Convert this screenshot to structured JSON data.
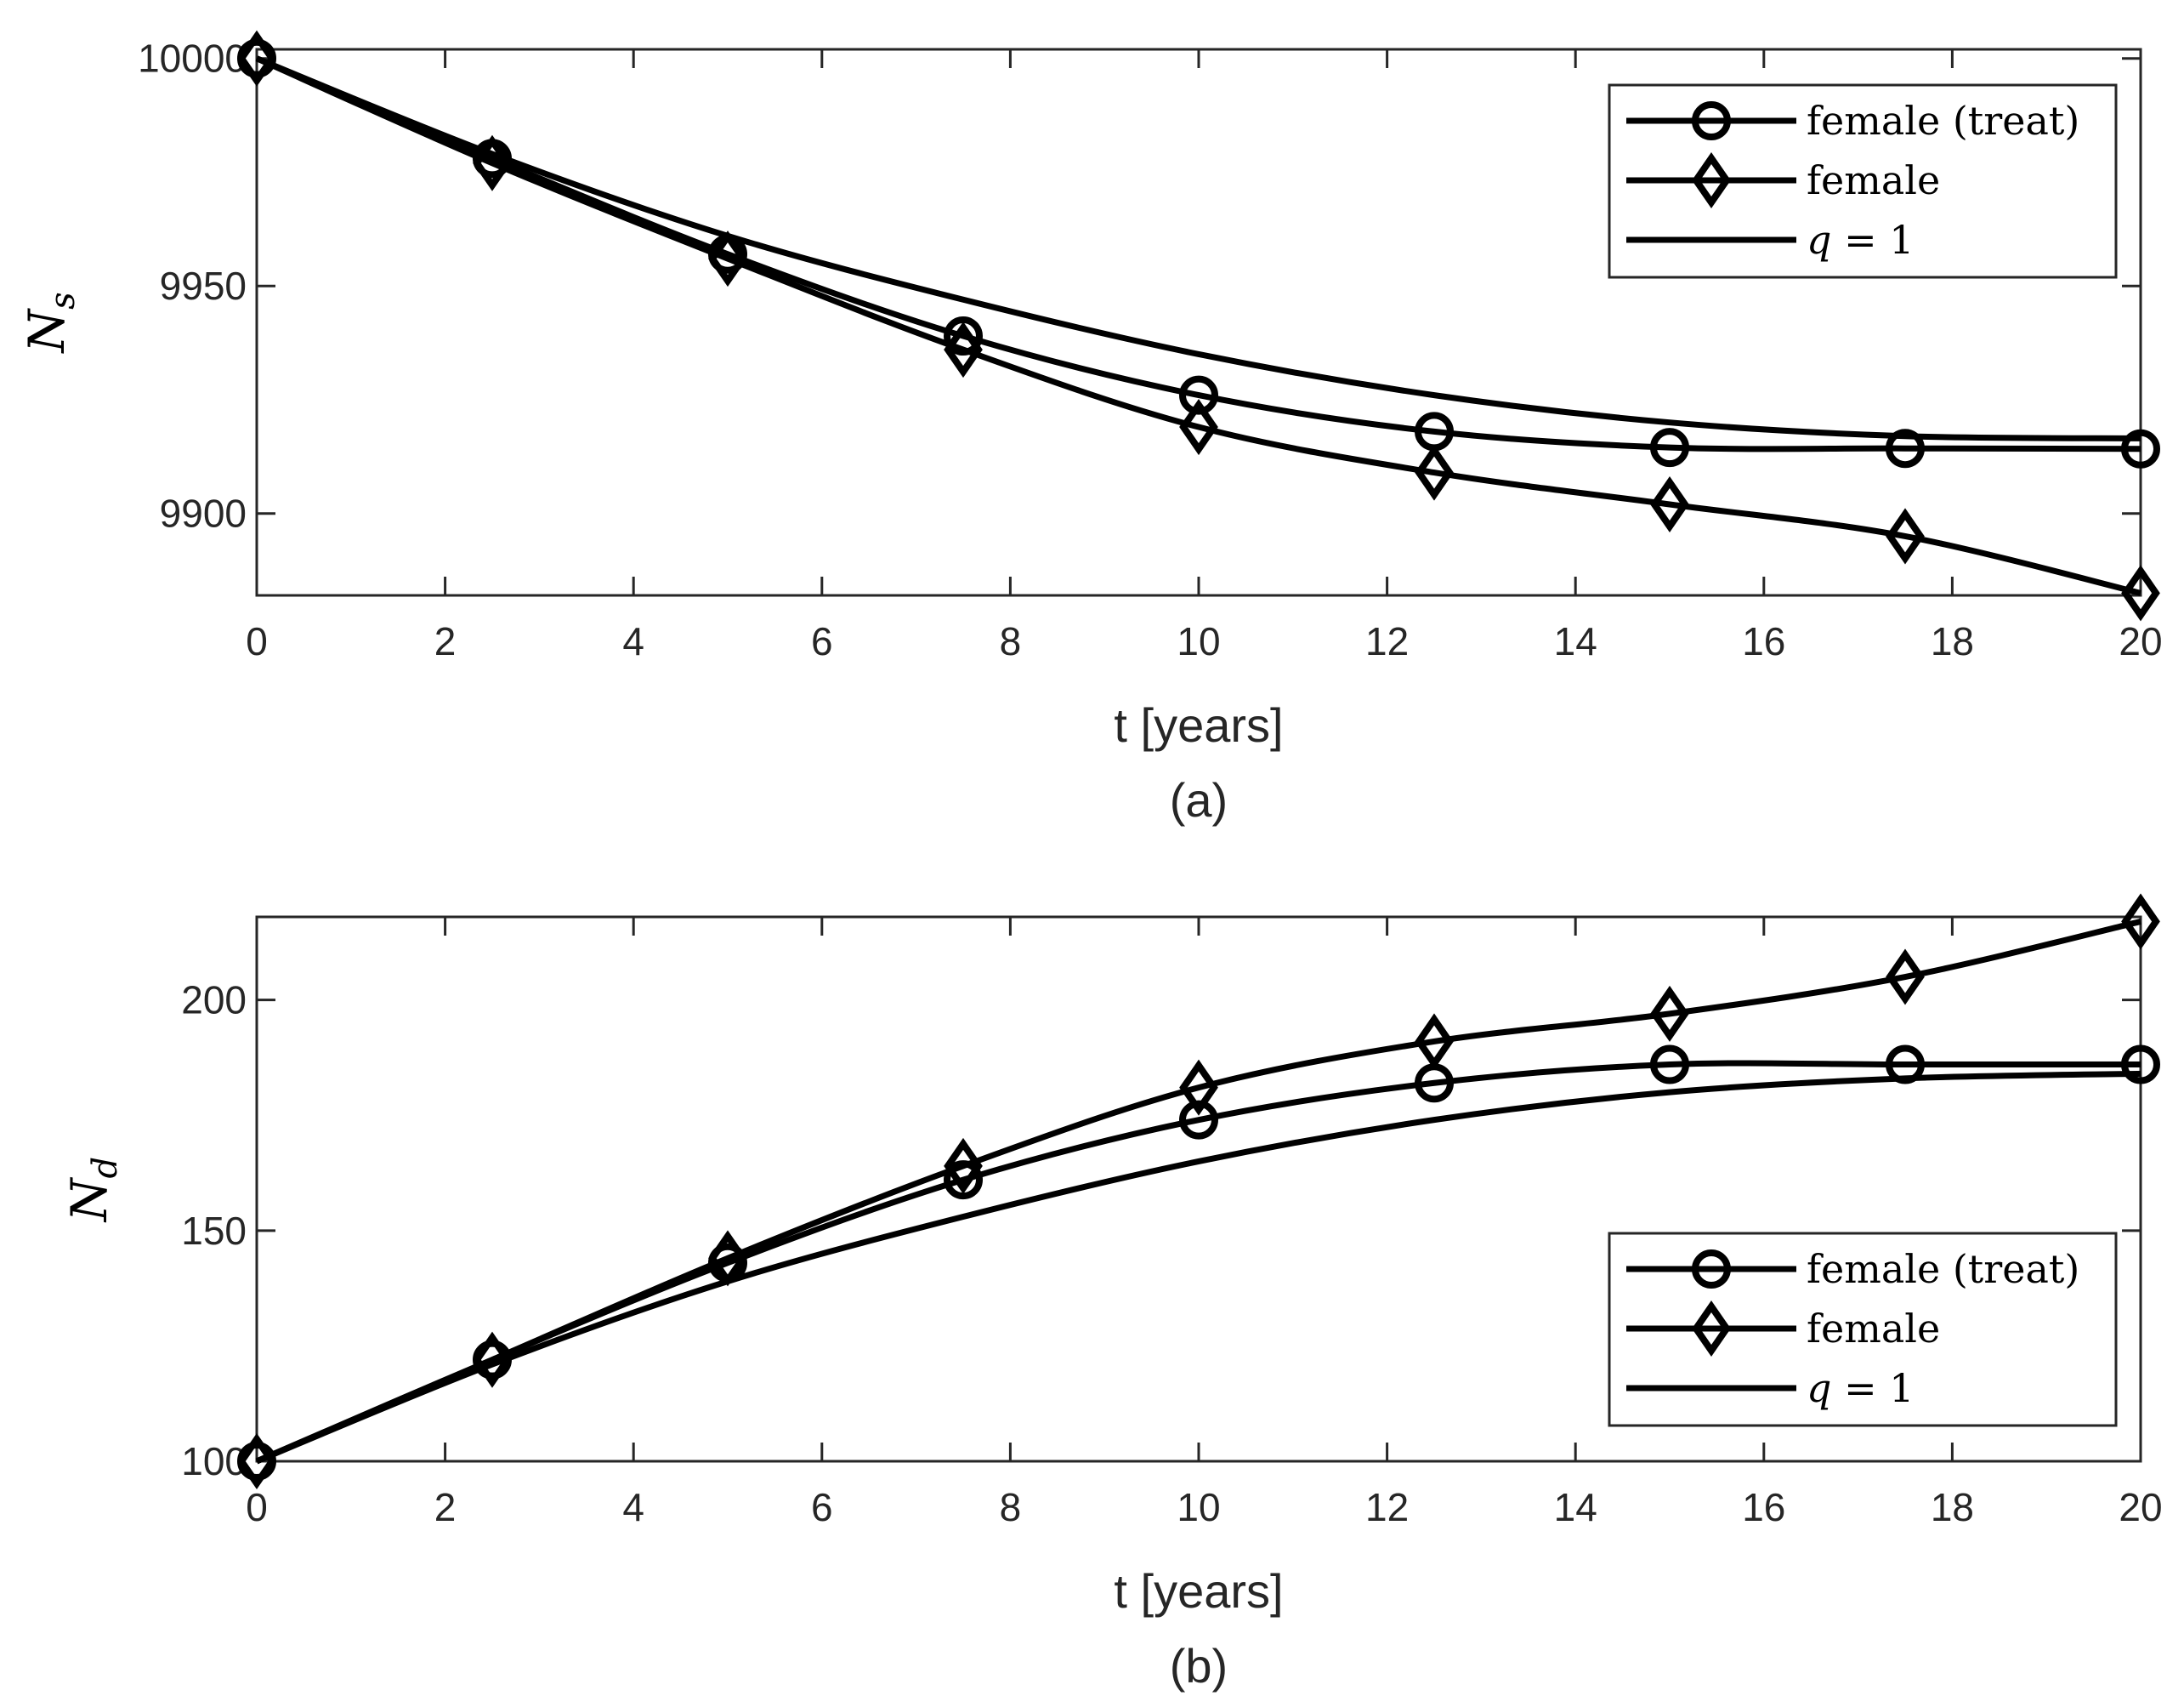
{
  "chart_data": [
    {
      "type": "line",
      "panel_label": "(a)",
      "xlabel": "t [years]",
      "ylabel": "N",
      "ylabel_subscript": "s",
      "xlim": [
        0,
        20
      ],
      "ylim": [
        9882,
        10002
      ],
      "xticks": [
        0,
        2,
        4,
        6,
        8,
        10,
        12,
        14,
        16,
        18,
        20
      ],
      "yticks": [
        9900,
        9950,
        10000
      ],
      "legend_position": "top-right",
      "series": [
        {
          "name": "female (treat)",
          "marker": "circle",
          "x": [
            0,
            2.5,
            5,
            7.5,
            10,
            12.5,
            15,
            17.5,
            20
          ],
          "y": [
            10000,
            9978,
            9957,
            9939,
            9926,
            9918,
            9914.5,
            9914.3,
            9914.2
          ]
        },
        {
          "name": "female",
          "marker": "diamond",
          "x": [
            0,
            2.5,
            5,
            7.5,
            10,
            12.5,
            15,
            17.5,
            20
          ],
          "y": [
            10000,
            9977,
            9956,
            9936,
            9919,
            9909,
            9902,
            9895,
            9882.5
          ]
        },
        {
          "name": "q = 1",
          "legend_math": {
            "var": "q",
            "op": "=",
            "value": "1"
          },
          "marker": "none",
          "x": [
            0,
            2.5,
            5,
            7.5,
            10,
            12.5,
            15,
            17.5,
            20
          ],
          "y": [
            10000,
            9979,
            9961,
            9947,
            9935,
            9926,
            9920,
            9917,
            9916.5
          ]
        }
      ]
    },
    {
      "type": "line",
      "panel_label": "(b)",
      "xlabel": "t [years]",
      "ylabel": "N",
      "ylabel_subscript": "d",
      "xlim": [
        0,
        20
      ],
      "ylim": [
        100,
        218
      ],
      "xticks": [
        0,
        2,
        4,
        6,
        8,
        10,
        12,
        14,
        16,
        18,
        20
      ],
      "yticks": [
        100,
        150,
        200
      ],
      "legend_position": "lower-right",
      "series": [
        {
          "name": "female (treat)",
          "marker": "circle",
          "x": [
            0,
            2.5,
            5,
            7.5,
            10,
            12.5,
            15,
            17.5,
            20
          ],
          "y": [
            100,
            122,
            143,
            161,
            174,
            182,
            186,
            186,
            186
          ]
        },
        {
          "name": "female",
          "marker": "diamond",
          "x": [
            0,
            2.5,
            5,
            7.5,
            10,
            12.5,
            15,
            17.5,
            20
          ],
          "y": [
            100,
            122,
            144,
            164,
            181,
            191,
            197,
            205,
            217
          ]
        },
        {
          "name": "q = 1",
          "legend_math": {
            "var": "q",
            "op": "=",
            "value": "1"
          },
          "marker": "none",
          "x": [
            0,
            2.5,
            5,
            7.5,
            10,
            12.5,
            15,
            17.5,
            20
          ],
          "y": [
            100,
            121,
            139,
            153,
            165,
            174,
            180,
            183,
            184
          ]
        }
      ]
    }
  ]
}
